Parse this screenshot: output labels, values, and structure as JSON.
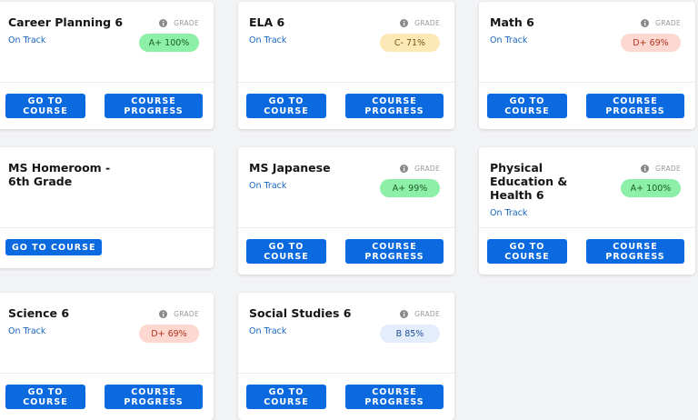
{
  "cards": [
    {
      "title": "Career Planning 6",
      "status": "On Track",
      "grade_heading": "GRADE",
      "grade": "A+ 100%",
      "grade_color": "green",
      "buttons": [
        "GO TO COURSE",
        "COURSE PROGRESS"
      ]
    },
    {
      "title": "ELA 6",
      "status": "On Track",
      "grade_heading": "GRADE",
      "grade": "C- 71%",
      "grade_color": "yellow",
      "buttons": [
        "GO TO COURSE",
        "COURSE PROGRESS"
      ]
    },
    {
      "title": "Math 6",
      "status": "On Track",
      "grade_heading": "GRADE",
      "grade": "D+ 69%",
      "grade_color": "red",
      "buttons": [
        "GO TO COURSE",
        "COURSE PROGRESS"
      ]
    },
    {
      "title": "MS Homeroom - 6th Grade",
      "buttons": [
        "GO TO COURSE"
      ]
    },
    {
      "title": "MS Japanese",
      "status": "On Track",
      "grade_heading": "GRADE",
      "grade": "A+ 99%",
      "grade_color": "green",
      "buttons": [
        "GO TO COURSE",
        "COURSE PROGRESS"
      ]
    },
    {
      "title": "Physical Education & Health 6",
      "status": "On Track",
      "grade_heading": "GRADE",
      "grade": "A+ 100%",
      "grade_color": "green",
      "buttons": [
        "GO TO COURSE",
        "COURSE PROGRESS"
      ]
    },
    {
      "title": "Science 6",
      "status": "On Track",
      "grade_heading": "GRADE",
      "grade": "D+ 69%",
      "grade_color": "red",
      "buttons": [
        "GO TO COURSE",
        "COURSE PROGRESS"
      ]
    },
    {
      "title": "Social Studies 6",
      "status": "On Track",
      "grade_heading": "GRADE",
      "grade": "B 85%",
      "grade_color": "blue",
      "buttons": [
        "GO TO COURSE",
        "COURSE PROGRESS"
      ]
    }
  ]
}
